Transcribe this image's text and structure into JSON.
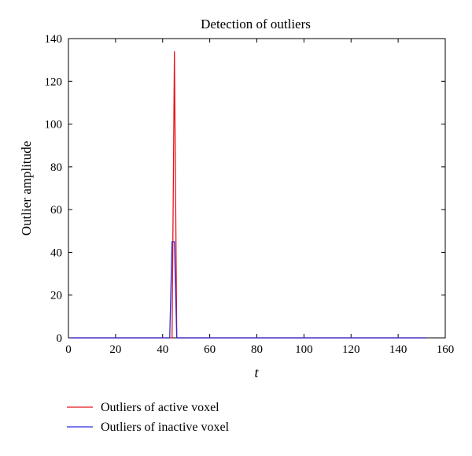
{
  "chart_data": {
    "type": "line",
    "title": "Detection of outliers",
    "xlabel": "t",
    "ylabel": "Outlier amplitude",
    "xlim": [
      0,
      160
    ],
    "ylim": [
      0,
      140
    ],
    "xticks": [
      0,
      20,
      40,
      60,
      80,
      100,
      120,
      140,
      160
    ],
    "yticks": [
      0,
      20,
      40,
      60,
      80,
      100,
      120,
      140
    ],
    "grid": false,
    "legend_position": "bottom-left, below plot",
    "series": [
      {
        "name": "Outliers of active voxel",
        "color": "#e8141c",
        "x": [
          1,
          44,
          45,
          46,
          47,
          152
        ],
        "y": [
          0,
          0,
          134,
          0,
          0,
          0
        ]
      },
      {
        "name": "Outliers of inactive voxel",
        "color": "#2b2bd6",
        "x": [
          1,
          43,
          44,
          45,
          46,
          152
        ],
        "y": [
          0,
          0,
          45,
          45,
          0,
          0
        ]
      }
    ]
  }
}
